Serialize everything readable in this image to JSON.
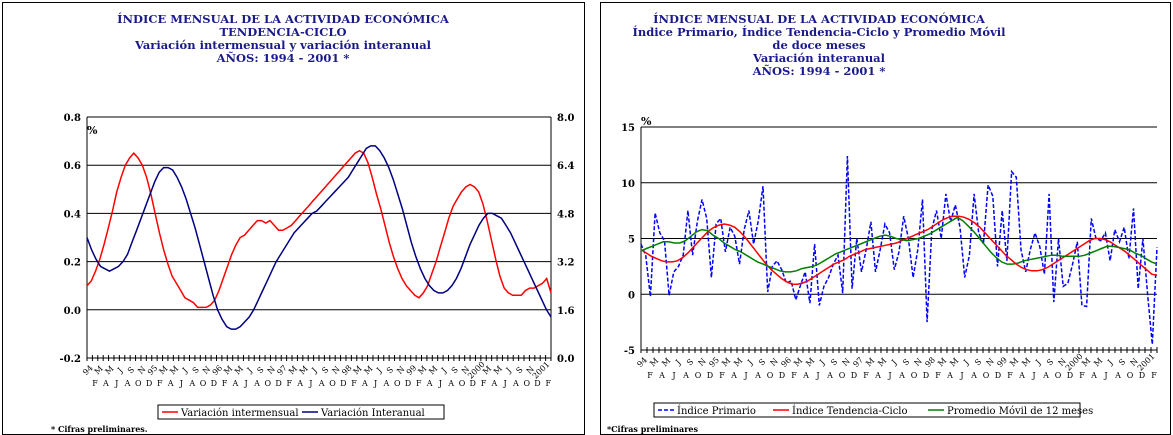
{
  "left_panel": {
    "title_lines": [
      "ÍNDICE MENSUAL DE LA ACTIVIDAD ECONÓMICA",
      "TENDENCIA-CICLO",
      "Variación intermensual y variación interanual",
      "AÑOS: 1994 - 2001 *"
    ],
    "unit_label": "%",
    "footnote": "* Cifras preliminares."
  },
  "right_panel": {
    "title_lines": [
      "ÍNDICE MENSUAL DE LA ACTIVIDAD ECONÓMICA",
      "Índice Primario, Índice Tendencia-Ciclo y Promedio Móvil",
      "de doce meses",
      "Variación interanual",
      "AÑOS: 1994 - 2001 *"
    ],
    "unit_label": "%",
    "footnote": "*Cifras preliminares"
  },
  "chart_data": [
    {
      "type": "line",
      "x_top": [
        "94",
        "M",
        "M",
        "J",
        "S",
        "N",
        "95",
        "M",
        "M",
        "J",
        "S",
        "N",
        "96",
        "M",
        "M",
        "J",
        "S",
        "N",
        "97",
        "M",
        "M",
        "J",
        "S",
        "N",
        "98",
        "M",
        "M",
        "J",
        "S",
        "N",
        "99",
        "M",
        "M",
        "J",
        "S",
        "N",
        "2000",
        "M",
        "M",
        "J",
        "S",
        "N",
        "2001"
      ],
      "x_bottom": [
        "F",
        "A",
        "J",
        "A",
        "O",
        "D",
        "F",
        "A",
        "J",
        "A",
        "O",
        "D",
        "F",
        "A",
        "J",
        "A",
        "O",
        "D",
        "F",
        "A",
        "J",
        "A",
        "O",
        "D",
        "F",
        "A",
        "J",
        "A",
        "O",
        "D",
        "F",
        "A",
        "J",
        "A",
        "O",
        "D",
        "F",
        "A",
        "J",
        "A",
        "O",
        "D",
        "F"
      ],
      "y_left_ticks": [
        "0.8",
        "0.6",
        "0.4",
        "0.2",
        "0.0",
        "-0.2"
      ],
      "y_right_ticks": [
        "8.0",
        "6.4",
        "4.8",
        "3.2",
        "1.6",
        "0.0"
      ],
      "ylim_left": [
        -0.2,
        0.8
      ],
      "ylim_right": [
        0.0,
        8.0
      ],
      "grid": true,
      "legend_position": "bottom",
      "series": [
        {
          "name": "Variación intermensual",
          "axis": "left",
          "color": "#ff0000",
          "values": [
            0.1,
            0.12,
            0.16,
            0.21,
            0.27,
            0.34,
            0.41,
            0.49,
            0.55,
            0.6,
            0.63,
            0.65,
            0.63,
            0.6,
            0.55,
            0.48,
            0.4,
            0.32,
            0.25,
            0.19,
            0.14,
            0.11,
            0.08,
            0.05,
            0.04,
            0.03,
            0.01,
            0.01,
            0.01,
            0.02,
            0.04,
            0.08,
            0.13,
            0.18,
            0.23,
            0.27,
            0.3,
            0.31,
            0.33,
            0.35,
            0.37,
            0.37,
            0.36,
            0.37,
            0.35,
            0.33,
            0.33,
            0.34,
            0.35,
            0.37,
            0.39,
            0.41,
            0.43,
            0.45,
            0.47,
            0.49,
            0.51,
            0.53,
            0.55,
            0.57,
            0.59,
            0.61,
            0.63,
            0.65,
            0.66,
            0.65,
            0.61,
            0.55,
            0.48,
            0.42,
            0.35,
            0.28,
            0.22,
            0.17,
            0.13,
            0.1,
            0.08,
            0.06,
            0.05,
            0.07,
            0.1,
            0.15,
            0.2,
            0.26,
            0.32,
            0.38,
            0.43,
            0.46,
            0.49,
            0.51,
            0.52,
            0.51,
            0.49,
            0.44,
            0.37,
            0.29,
            0.21,
            0.14,
            0.09,
            0.07,
            0.06,
            0.06,
            0.06,
            0.08,
            0.09,
            0.09,
            0.1,
            0.11,
            0.13,
            0.07
          ]
        },
        {
          "name": "Variación Interanual",
          "axis": "left",
          "color": "#000080",
          "values": [
            0.3,
            0.25,
            0.21,
            0.18,
            0.17,
            0.16,
            0.17,
            0.18,
            0.2,
            0.23,
            0.28,
            0.33,
            0.38,
            0.43,
            0.48,
            0.53,
            0.57,
            0.59,
            0.59,
            0.58,
            0.55,
            0.51,
            0.46,
            0.4,
            0.34,
            0.27,
            0.2,
            0.13,
            0.06,
            0.0,
            -0.04,
            -0.07,
            -0.08,
            -0.08,
            -0.07,
            -0.05,
            -0.03,
            0.0,
            0.04,
            0.08,
            0.12,
            0.16,
            0.2,
            0.23,
            0.26,
            0.29,
            0.32,
            0.34,
            0.36,
            0.38,
            0.4,
            0.41,
            0.43,
            0.45,
            0.47,
            0.49,
            0.51,
            0.53,
            0.55,
            0.58,
            0.61,
            0.64,
            0.67,
            0.68,
            0.68,
            0.66,
            0.63,
            0.59,
            0.54,
            0.48,
            0.42,
            0.35,
            0.28,
            0.22,
            0.17,
            0.13,
            0.1,
            0.08,
            0.07,
            0.07,
            0.08,
            0.1,
            0.13,
            0.17,
            0.22,
            0.27,
            0.31,
            0.35,
            0.38,
            0.4,
            0.4,
            0.39,
            0.38,
            0.35,
            0.32,
            0.28,
            0.24,
            0.2,
            0.16,
            0.12,
            0.08,
            0.04,
            0.0,
            -0.03
          ]
        }
      ]
    },
    {
      "type": "line",
      "x_top": [
        "94",
        "M",
        "M",
        "J",
        "S",
        "N",
        "95",
        "M",
        "M",
        "J",
        "S",
        "N",
        "96",
        "M",
        "M",
        "J",
        "S",
        "N",
        "97",
        "M",
        "M",
        "J",
        "S",
        "N",
        "98",
        "M",
        "M",
        "J",
        "S",
        "N",
        "99",
        "M",
        "M",
        "J",
        "S",
        "N",
        "2000",
        "M",
        "M",
        "J",
        "S",
        "N",
        "2001"
      ],
      "x_bottom": [
        "F",
        "A",
        "J",
        "A",
        "O",
        "D",
        "F",
        "A",
        "J",
        "A",
        "O",
        "D",
        "F",
        "A",
        "J",
        "A",
        "O",
        "D",
        "F",
        "A",
        "J",
        "A",
        "O",
        "D",
        "F",
        "A",
        "J",
        "A",
        "O",
        "D",
        "F",
        "A",
        "J",
        "A",
        "O",
        "D",
        "F",
        "A",
        "J",
        "A",
        "O",
        "D",
        "F"
      ],
      "y_ticks": [
        "15",
        "10",
        "5",
        "0",
        "-5"
      ],
      "ylim": [
        -5,
        15
      ],
      "grid": true,
      "legend_position": "bottom",
      "series": [
        {
          "name": "Índice Primario",
          "color": "#0000ff",
          "values": [
            4.5,
            3.5,
            -0.2,
            7.3,
            5.5,
            4.8,
            -0.1,
            2.0,
            2.5,
            3.5,
            7.5,
            3.5,
            6.5,
            8.5,
            6.8,
            1.5,
            6.3,
            6.8,
            3.8,
            6.0,
            5.2,
            2.7,
            5.8,
            7.5,
            4.5,
            6.6,
            9.7,
            0.2,
            2.5,
            3.0,
            2.2,
            1.0,
            1.2,
            -0.5,
            0.8,
            2.0,
            -0.8,
            4.5,
            -1.0,
            0.7,
            1.5,
            2.7,
            3.5,
            0.1,
            12.4,
            0.5,
            5.0,
            2.0,
            4.0,
            6.5,
            2.0,
            4.0,
            6.3,
            5.5,
            2.2,
            3.8,
            7.0,
            5.0,
            1.5,
            4.0,
            8.5,
            -2.5,
            5.8,
            7.5,
            5.0,
            9.0,
            6.5,
            8.0,
            6.0,
            1.5,
            3.5,
            9.0,
            5.5,
            4.5,
            9.8,
            8.8,
            2.5,
            7.5,
            3.0,
            11.0,
            10.5,
            4.0,
            2.0,
            4.0,
            5.5,
            4.3,
            1.8,
            9.0,
            -0.7,
            5.0,
            0.7,
            1.0,
            2.7,
            4.7,
            -1.0,
            -1.1,
            6.8,
            5.0,
            4.8,
            5.5,
            3.0,
            5.8,
            4.7,
            6.0,
            3.2,
            7.7,
            0.5,
            5.0,
            0.0,
            -4.5,
            4.2
          ]
        },
        {
          "name": "Índice Tendencia-Ciclo",
          "color": "#ff0000",
          "values": [
            4.0,
            3.7,
            3.4,
            3.2,
            3.0,
            2.9,
            2.9,
            3.0,
            3.3,
            3.7,
            4.2,
            4.7,
            5.2,
            5.7,
            6.0,
            6.2,
            6.3,
            6.2,
            6.0,
            5.6,
            5.1,
            4.5,
            3.9,
            3.3,
            2.7,
            2.2,
            1.8,
            1.4,
            1.1,
            0.9,
            0.9,
            1.0,
            1.2,
            1.5,
            1.8,
            2.1,
            2.4,
            2.7,
            2.9,
            3.1,
            3.4,
            3.6,
            3.8,
            4.0,
            4.1,
            4.2,
            4.3,
            4.4,
            4.5,
            4.6,
            4.8,
            5.0,
            5.2,
            5.4,
            5.6,
            5.8,
            6.1,
            6.4,
            6.7,
            6.9,
            7.0,
            7.0,
            6.9,
            6.7,
            6.4,
            6.0,
            5.5,
            5.0,
            4.5,
            4.0,
            3.5,
            3.1,
            2.7,
            2.4,
            2.2,
            2.1,
            2.1,
            2.2,
            2.4,
            2.7,
            3.0,
            3.3,
            3.6,
            3.9,
            4.2,
            4.5,
            4.8,
            5.0,
            5.0,
            4.9,
            4.7,
            4.4,
            4.1,
            3.8,
            3.4,
            3.0,
            2.6,
            2.2,
            1.8,
            1.7
          ]
        },
        {
          "name": "Promedio Móvil de 12 meses",
          "color": "#008000",
          "values": [
            3.9,
            4.1,
            4.3,
            4.5,
            4.7,
            4.7,
            4.6,
            4.6,
            4.8,
            5.2,
            5.6,
            5.8,
            5.7,
            5.3,
            5.0,
            4.6,
            4.3,
            4.0,
            3.8,
            3.5,
            3.2,
            2.9,
            2.7,
            2.5,
            2.3,
            2.1,
            2.0,
            2.0,
            2.1,
            2.3,
            2.4,
            2.5,
            2.7,
            3.0,
            3.3,
            3.6,
            3.8,
            4.0,
            4.2,
            4.4,
            4.6,
            4.8,
            5.0,
            5.2,
            5.3,
            5.2,
            5.0,
            4.9,
            4.8,
            4.9,
            5.0,
            5.2,
            5.4,
            5.7,
            6.0,
            6.3,
            6.6,
            6.9,
            6.6,
            6.1,
            5.6,
            5.0,
            4.4,
            3.8,
            3.3,
            2.9,
            2.7,
            2.7,
            2.8,
            3.0,
            3.1,
            3.2,
            3.3,
            3.4,
            3.5,
            3.5,
            3.4,
            3.4,
            3.4,
            3.4,
            3.5,
            3.7,
            3.9,
            4.1,
            4.3,
            4.3,
            4.2,
            4.1,
            4.0,
            3.7,
            3.5,
            3.2,
            2.9,
            2.7
          ]
        }
      ]
    }
  ]
}
